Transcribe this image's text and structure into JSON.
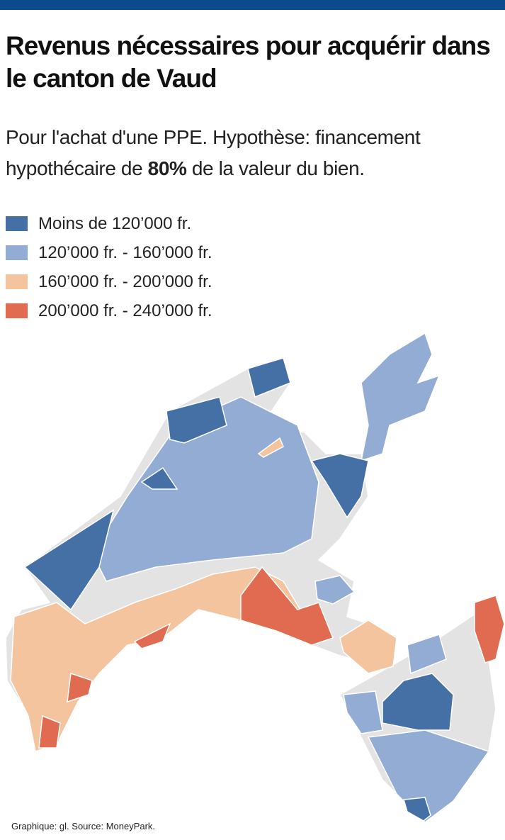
{
  "header": {
    "title": "Revenus nécessaires pour acquérir dans le canton de Vaud",
    "subtitle": [
      "Pour l'achat d'une PPE. Hypothèse: financement hypothécaire de ",
      "80%",
      " de la valeur du bien."
    ]
  },
  "legend": [
    {
      "label": "Moins de 120’000 fr.",
      "color": "#4470a5"
    },
    {
      "label": "120’000 fr. - 160’000 fr.",
      "color": "#93acd4"
    },
    {
      "label": "160’000 fr. - 200’000 fr.",
      "color": "#f4c49e"
    },
    {
      "label": "200’000 fr. - 240’000 fr.",
      "color": "#e06b50"
    }
  ],
  "source": "Graphique: gl. Source: MoneyPark."
}
